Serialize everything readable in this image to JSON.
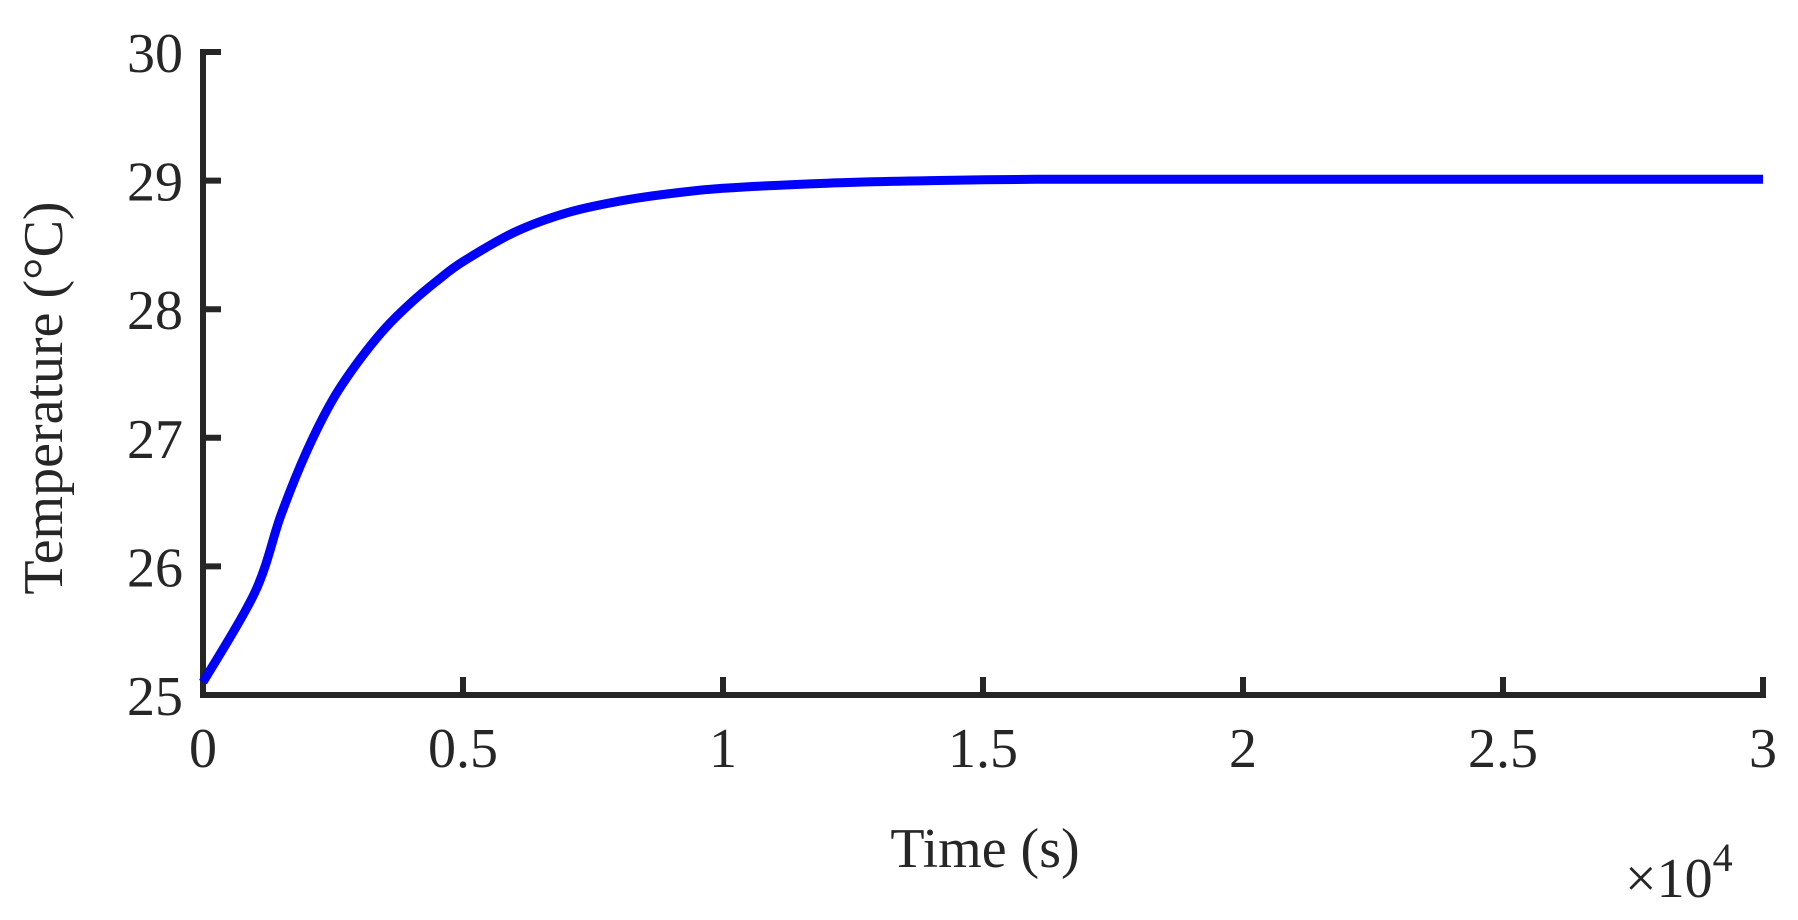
{
  "chart_data": {
    "type": "line",
    "title": "",
    "xlabel": "Time (s)",
    "ylabel": "Temperature (°C)",
    "x_exponent_label": "×10",
    "x_exponent_power": "4",
    "xlim": [
      0,
      30000
    ],
    "ylim": [
      25,
      30
    ],
    "xticks": [
      0,
      5000,
      10000,
      15000,
      20000,
      25000,
      30000
    ],
    "xtick_labels": [
      "0",
      "0.5",
      "1",
      "1.5",
      "2",
      "2.5",
      "3"
    ],
    "yticks": [
      25,
      26,
      27,
      28,
      29,
      30
    ],
    "ytick_labels": [
      "25",
      "26",
      "27",
      "28",
      "29",
      "30"
    ],
    "grid": false,
    "legend": "none",
    "series": [
      {
        "color": "#0000ff",
        "x": [
          0,
          1000,
          1500,
          2000,
          2500,
          3000,
          3500,
          4000,
          4500,
          5000,
          6000,
          7000,
          8000,
          9000,
          10000,
          12000,
          14000,
          16000,
          18000,
          20000,
          25000,
          30000
        ],
        "y": [
          25.1,
          25.8,
          26.4,
          26.9,
          27.3,
          27.6,
          27.85,
          28.05,
          28.22,
          28.37,
          28.6,
          28.75,
          28.84,
          28.9,
          28.94,
          28.98,
          29.0,
          29.01,
          29.01,
          29.01,
          29.01,
          29.01
        ]
      }
    ]
  }
}
